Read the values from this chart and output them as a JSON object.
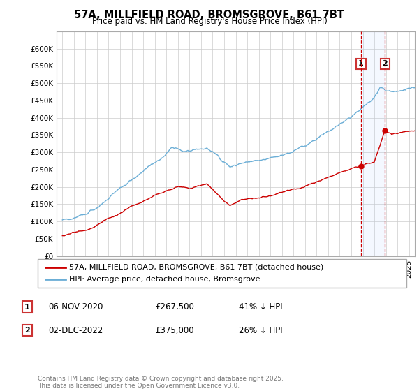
{
  "title_line1": "57A, MILLFIELD ROAD, BROMSGROVE, B61 7BT",
  "title_line2": "Price paid vs. HM Land Registry's House Price Index (HPI)",
  "hpi_color": "#6baed6",
  "price_color": "#cc0000",
  "dashed_color": "#cc0000",
  "legend_label_1": "57A, MILLFIELD ROAD, BROMSGROVE, B61 7BT (detached house)",
  "legend_label_2": "HPI: Average price, detached house, Bromsgrove",
  "sale_1_date": "06-NOV-2020",
  "sale_1_price": "£267,500",
  "sale_1_note": "41% ↓ HPI",
  "sale_2_date": "02-DEC-2022",
  "sale_2_price": "£375,000",
  "sale_2_note": "26% ↓ HPI",
  "footer": "Contains HM Land Registry data © Crown copyright and database right 2025.\nThis data is licensed under the Open Government Licence v3.0.",
  "ylim_min": 0,
  "ylim_max": 650000,
  "yticks": [
    0,
    50000,
    100000,
    150000,
    200000,
    250000,
    300000,
    350000,
    400000,
    450000,
    500000,
    550000,
    600000
  ],
  "sale1_x": 2020.85,
  "sale2_x": 2022.92,
  "xmin": 1994.5,
  "xmax": 2025.5
}
